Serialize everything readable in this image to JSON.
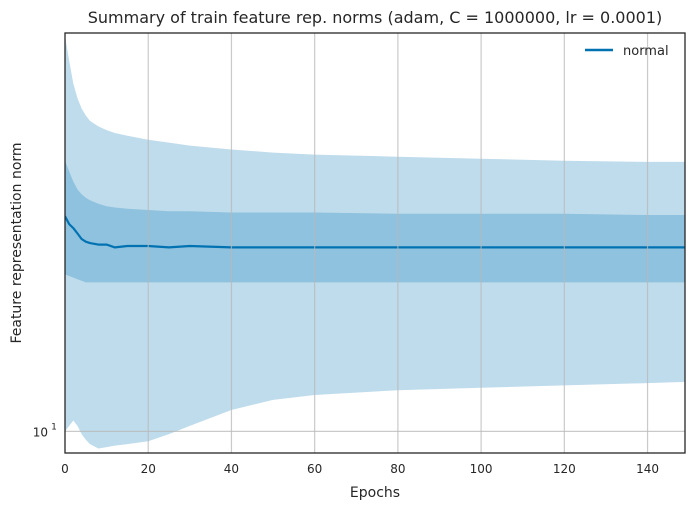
{
  "chart_data": {
    "type": "line",
    "title": "Summary of train feature rep. norms (adam, C = 1000000, lr = 0.0001)",
    "xlabel": "Epochs",
    "ylabel": "Feature representation norm",
    "y_scale": "log",
    "xlim": [
      0,
      149
    ],
    "ylim": [
      9.25,
      42
    ],
    "grid": true,
    "legend_position": "upper-right",
    "x_ticks": [
      0,
      20,
      40,
      60,
      80,
      100,
      120,
      140
    ],
    "y_ticks": [
      {
        "value": 10,
        "label": "10",
        "exponent": "1"
      }
    ],
    "series": [
      {
        "name": "normal",
        "color": "#0072b2",
        "x": [
          0,
          1,
          2,
          3,
          4,
          5,
          6,
          8,
          10,
          12,
          15,
          20,
          25,
          30,
          40,
          50,
          60,
          80,
          100,
          120,
          140,
          149
        ],
        "mean": [
          21.7,
          21.1,
          20.8,
          20.4,
          20.0,
          19.8,
          19.7,
          19.6,
          19.6,
          19.4,
          19.5,
          19.5,
          19.4,
          19.5,
          19.4,
          19.4,
          19.4,
          19.4,
          19.4,
          19.4,
          19.4,
          19.4
        ],
        "inner_upper": [
          26.5,
          25.5,
          24.6,
          23.9,
          23.5,
          23.2,
          23.0,
          22.7,
          22.5,
          22.4,
          22.3,
          22.2,
          22.1,
          22.1,
          22.0,
          22.0,
          22.0,
          21.9,
          21.9,
          21.9,
          21.8,
          21.8
        ],
        "inner_lower": [
          17.6,
          17.5,
          17.4,
          17.3,
          17.2,
          17.1,
          17.1,
          17.1,
          17.1,
          17.1,
          17.1,
          17.1,
          17.1,
          17.1,
          17.1,
          17.1,
          17.1,
          17.1,
          17.1,
          17.1,
          17.1,
          17.1
        ],
        "outer_upper": [
          41.5,
          38.0,
          35.0,
          33.2,
          32.0,
          31.2,
          30.6,
          30.0,
          29.6,
          29.3,
          29.0,
          28.6,
          28.3,
          28.0,
          27.6,
          27.3,
          27.1,
          26.9,
          26.7,
          26.5,
          26.4,
          26.4
        ],
        "outer_lower": [
          10.0,
          10.2,
          10.4,
          10.2,
          9.9,
          9.7,
          9.55,
          9.4,
          9.45,
          9.5,
          9.55,
          9.65,
          9.9,
          10.2,
          10.8,
          11.2,
          11.4,
          11.6,
          11.7,
          11.8,
          11.9,
          11.95
        ]
      }
    ]
  }
}
